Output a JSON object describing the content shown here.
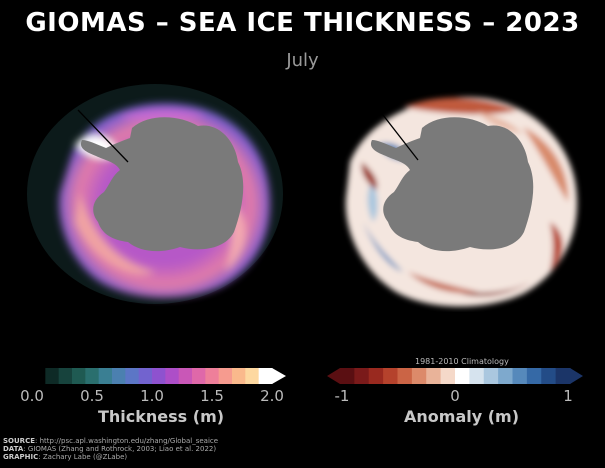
{
  "title": "GIOMAS – SEA ICE THICKNESS – 2023",
  "subtitle": "July",
  "left_colorbar": {
    "ticks": [
      "0.0",
      "0.5",
      "1.0",
      "1.5",
      "2.0"
    ],
    "label": "Thickness (m)",
    "colors": [
      "#000000",
      "#0e2a26",
      "#17433d",
      "#1f5a52",
      "#2a6f6e",
      "#3a7f93",
      "#4b80b0",
      "#5c76c6",
      "#7263cf",
      "#8e52cf",
      "#ad4ec8",
      "#c957b7",
      "#df68a9",
      "#ee7f9a",
      "#f69b8f",
      "#fab98c",
      "#fdd8a0",
      "#ffffff"
    ]
  },
  "right_colorbar": {
    "ticks": [
      "-1",
      "0",
      "1"
    ],
    "label": "Anomaly (m)",
    "climatology_label": "1981-2010 Climatology",
    "colors": [
      "#5a0f12",
      "#7a1a1a",
      "#99291f",
      "#b5422c",
      "#cb6445",
      "#dc8a6a",
      "#e9b399",
      "#f5d9c9",
      "#ffffff",
      "#d6e3ee",
      "#aac7df",
      "#7ea9cd",
      "#5689bb",
      "#3569a6",
      "#234c87",
      "#1b3568"
    ]
  },
  "credits": {
    "source_key": "SOURCE",
    "source_val": ": http://psc.apl.washington.edu/zhang/Global_seaice",
    "data_key": "DATA",
    "data_val": ": GIOMAS (Zhang and Rothrock, 2003; Liao et al. 2022)",
    "graphic_key": "GRAPHIC",
    "graphic_val": ": Zachary Labe (@ZLabe)"
  }
}
